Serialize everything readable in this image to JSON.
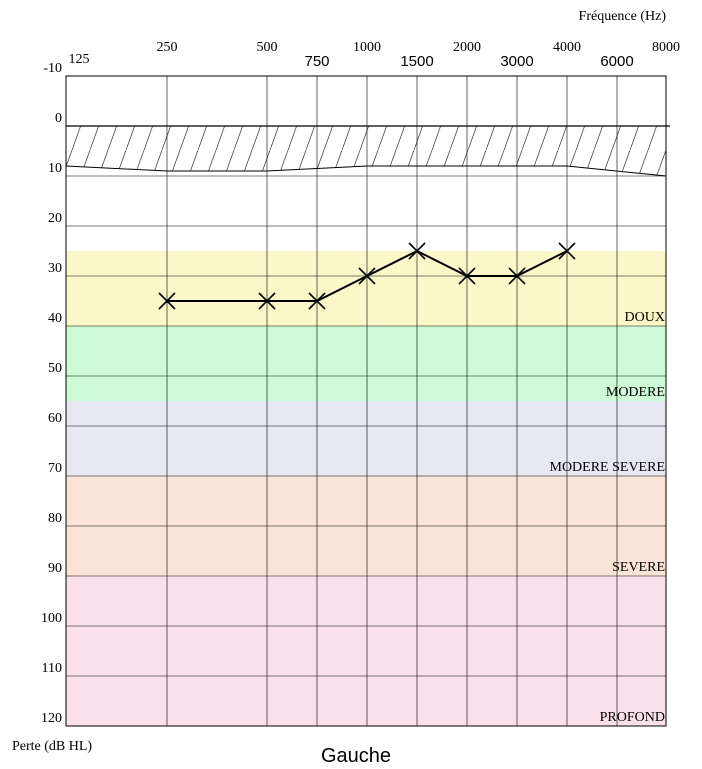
{
  "chart_data": {
    "type": "line",
    "title": "Gauche",
    "xlabel": "Fréquence (Hz)",
    "ylabel": "Perte (dB HL)",
    "x_ticks_upper": [
      "250",
      "500",
      "1000",
      "2000",
      "4000",
      "8000"
    ],
    "x_ticks_lower": [
      "125",
      "750",
      "1500",
      "3000",
      "6000"
    ],
    "x": [
      "250",
      "500",
      "750",
      "1000",
      "1500",
      "2000",
      "3000",
      "4000"
    ],
    "y": [
      35,
      35,
      35,
      30,
      25,
      30,
      30,
      25
    ],
    "ylim": [
      -10,
      120
    ],
    "y_ticks": [
      "-10",
      "0",
      "10",
      "20",
      "30",
      "40",
      "50",
      "60",
      "70",
      "80",
      "90",
      "100",
      "110",
      "120"
    ],
    "marker": "x",
    "normal_band": {
      "upper": 0,
      "lower_values": [
        8,
        9,
        9,
        8.5,
        8,
        8,
        8,
        8,
        8,
        10
      ]
    },
    "zones": [
      {
        "label": "DOUX",
        "from": 25,
        "to": 40,
        "color": "#fbf7c8"
      },
      {
        "label": "MODERE",
        "from": 40,
        "to": 55,
        "color": "#cefbd6"
      },
      {
        "label": "MODERE SEVERE",
        "from": 55,
        "to": 70,
        "color": "#e8e8f3"
      },
      {
        "label": "SEVERE",
        "from": 70,
        "to": 90,
        "color": "#fbe4d7"
      },
      {
        "label": "PROFOND",
        "from": 90,
        "to": 120,
        "color": "#f9e0ea"
      }
    ],
    "grid": true
  }
}
